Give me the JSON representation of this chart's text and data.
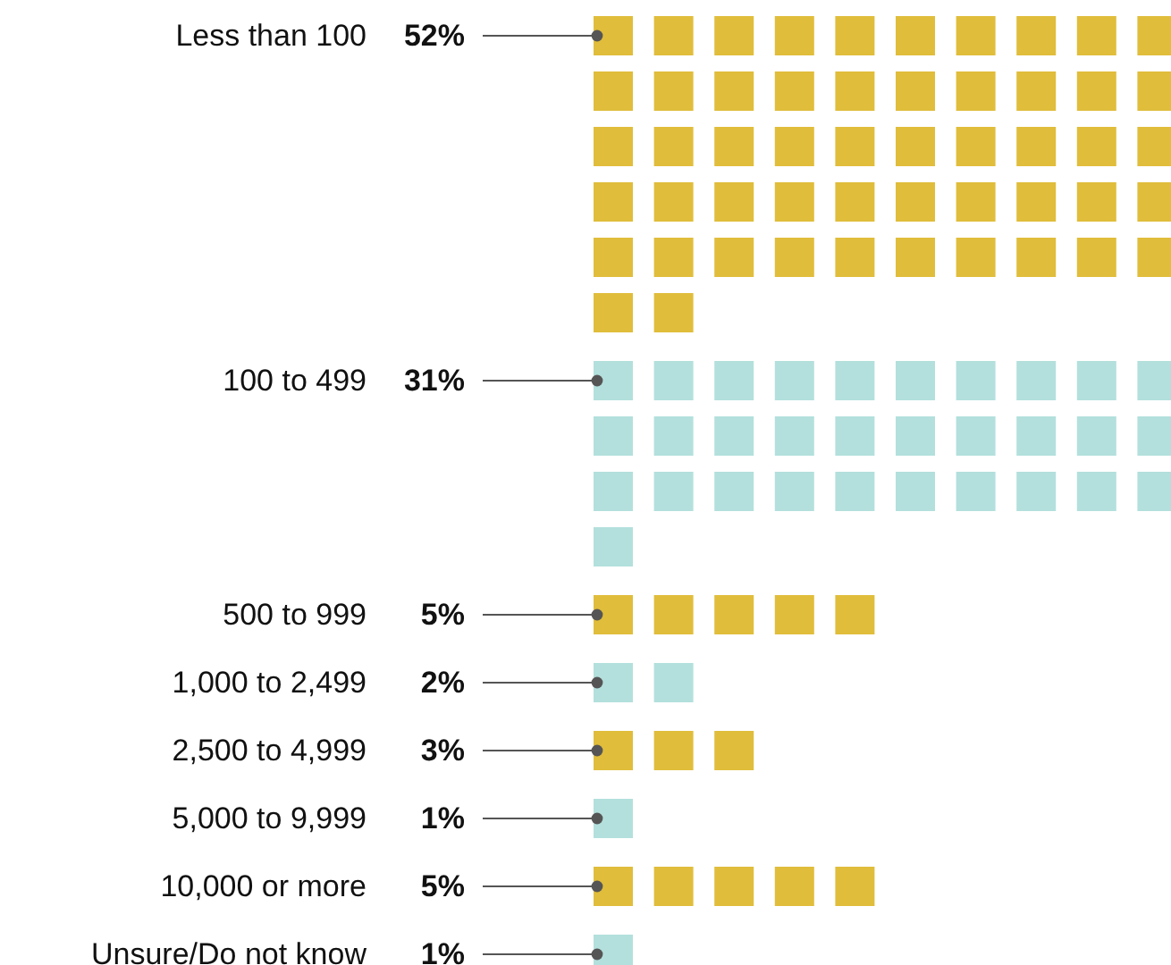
{
  "chart_data": {
    "type": "other",
    "categories": [
      "Less than 100",
      "100 to 499",
      "500 to 999",
      "1,000 to 2,499",
      "2,500 to 4,999",
      "5,000 to 9,999",
      "10,000 or more",
      "Unsure/Do not know"
    ],
    "values": [
      52,
      31,
      5,
      2,
      3,
      1,
      5,
      1
    ],
    "value_labels": [
      "52%",
      "31%",
      "5%",
      "2%",
      "3%",
      "1%",
      "5%",
      "1%"
    ],
    "colors": [
      "#e0bd3b",
      "#b3e0dc",
      "#e0bd3b",
      "#b3e0dc",
      "#e0bd3b",
      "#b3e0dc",
      "#e0bd3b",
      "#b3e0dc"
    ]
  }
}
